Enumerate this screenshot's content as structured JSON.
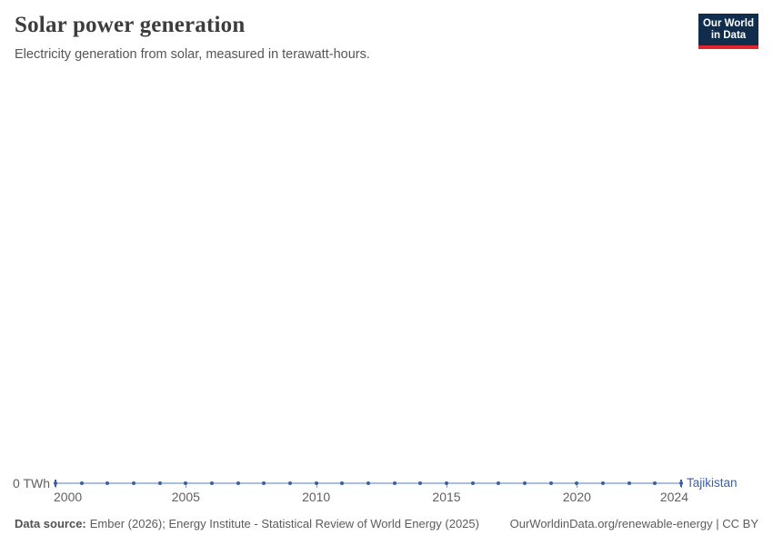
{
  "header": {
    "title": "Solar power generation",
    "subtitle": "Electricity generation from solar, measured in terawatt-hours.",
    "logo": {
      "line1": "Our World",
      "line2": "in Data",
      "bg": "#102d4e",
      "accent": "#e0262d"
    }
  },
  "chart_data": {
    "type": "line",
    "title": "Solar power generation",
    "xlabel": "",
    "ylabel": "",
    "x": [
      2000,
      2001,
      2002,
      2003,
      2004,
      2005,
      2006,
      2007,
      2008,
      2009,
      2010,
      2011,
      2012,
      2013,
      2014,
      2015,
      2016,
      2017,
      2018,
      2019,
      2020,
      2021,
      2022,
      2023,
      2024
    ],
    "series": [
      {
        "name": "Tajikistan",
        "color": "#3a5fa8",
        "values": [
          0,
          0,
          0,
          0,
          0,
          0,
          0,
          0,
          0,
          0,
          0,
          0,
          0,
          0,
          0,
          0,
          0,
          0,
          0,
          0,
          0,
          0,
          0,
          0,
          0
        ]
      }
    ],
    "x_ticks": [
      2000,
      2005,
      2010,
      2015,
      2020,
      2024
    ],
    "y_ticks": [
      {
        "value": 0,
        "label": "0 TWh"
      }
    ],
    "xlim": [
      2000,
      2024
    ],
    "ylim": [
      0,
      0
    ],
    "grid": false,
    "legend_position": "end-of-line",
    "colors": {
      "series": "#3a5fa8",
      "series_line_light": "#a6bfe3",
      "axis_text": "#606060"
    }
  },
  "footer": {
    "source_label": "Data source:",
    "source_text": "Ember (2026); Energy Institute - Statistical Review of World Energy (2025)",
    "credit": "OurWorldinData.org/renewable-energy | CC BY"
  }
}
